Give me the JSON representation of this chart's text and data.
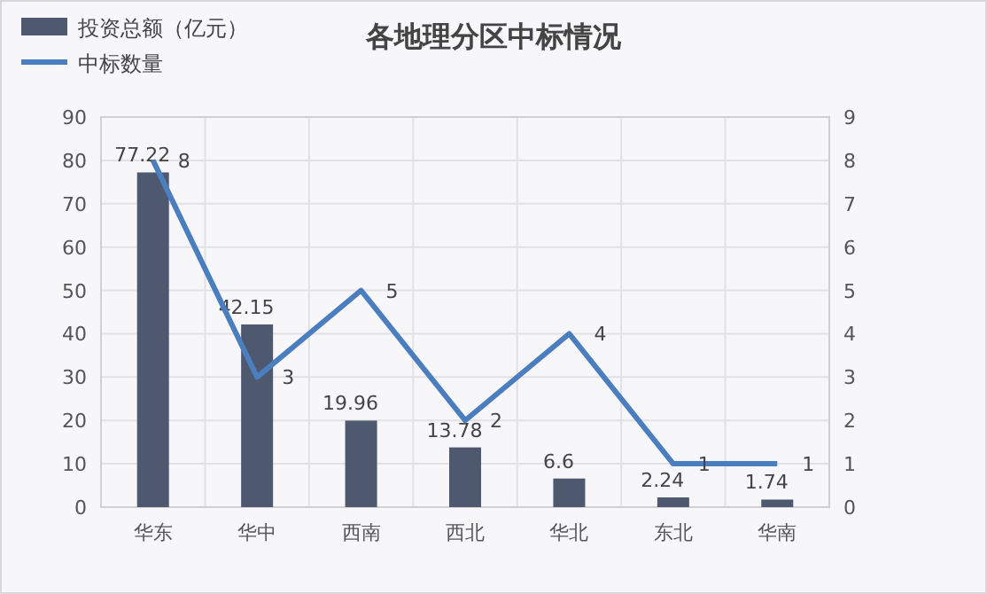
{
  "chart_data": {
    "type": "bar",
    "title": "各地理分区中标情况",
    "categories": [
      "华东",
      "华中",
      "西南",
      "西北",
      "华北",
      "东北",
      "华南"
    ],
    "series": [
      {
        "name": "投资总额（亿元）",
        "color": "#4e586f",
        "values": [
          77.22,
          42.15,
          19.96,
          13.78,
          6.6,
          2.24,
          1.74
        ]
      },
      {
        "name": "中标数量",
        "type": "line",
        "axis": "y2",
        "color": "#4a7ebf",
        "values": [
          8,
          3,
          5,
          2,
          4,
          1,
          1
        ]
      }
    ],
    "ylim": [
      0,
      90
    ],
    "yticks": [
      0,
      10,
      20,
      30,
      40,
      50,
      60,
      70,
      80,
      90
    ],
    "y2lim": [
      0,
      9
    ],
    "y2ticks": [
      0,
      1,
      2,
      3,
      4,
      5,
      6,
      7,
      8,
      9
    ],
    "grid": true,
    "legend": "top left",
    "data_labels": true
  }
}
